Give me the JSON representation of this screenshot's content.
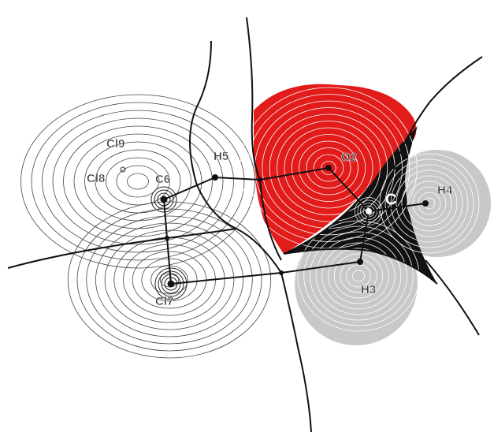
{
  "labels": {
    "cl9": "Cl9",
    "cl8": "Cl8",
    "c6": "C6",
    "h5": "H5",
    "o2": "O2",
    "c": "C",
    "h4": "H4",
    "h3": "H3",
    "cl7": "Cl7"
  }
}
